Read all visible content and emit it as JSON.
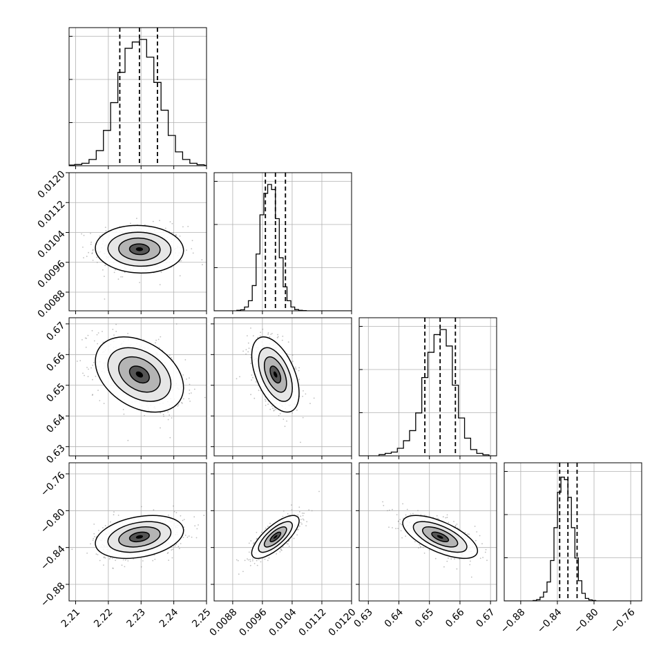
{
  "chart_data": {
    "type": "corner",
    "params": [
      {
        "range": [
          2.208,
          2.25
        ],
        "mean": 2.2295,
        "sd": 0.0055,
        "q": [
          2.2235,
          2.2295,
          2.235
        ],
        "ticks": [
          "2.21",
          "2.22",
          "2.23",
          "2.24",
          "2.25"
        ],
        "tick_values": [
          2.21,
          2.22,
          2.23,
          2.24,
          2.25
        ]
      },
      {
        "range": [
          0.0083,
          0.012
        ],
        "mean": 0.00995,
        "sd": 0.00026,
        "q": [
          0.00968,
          0.00995,
          0.01022
        ],
        "ticks": [
          "0.0088",
          "0.0096",
          "0.0104",
          "0.0112",
          "0.0120"
        ],
        "tick_values": [
          0.0088,
          0.0096,
          0.0104,
          0.0112,
          0.012
        ]
      },
      {
        "range": [
          0.627,
          0.672
        ],
        "mean": 0.6535,
        "sd": 0.005,
        "q": [
          0.6485,
          0.6535,
          0.6585
        ],
        "ticks": [
          "0.63",
          "0.64",
          "0.65",
          "0.66",
          "0.67"
        ],
        "tick_values": [
          0.63,
          0.64,
          0.65,
          0.66,
          0.67
        ]
      },
      {
        "range": [
          -0.898,
          -0.748
        ],
        "mean": -0.8285,
        "sd": 0.0095,
        "q": [
          -0.8375,
          -0.8285,
          -0.8185
        ],
        "ticks": [
          "−0.88",
          "−0.84",
          "−0.80",
          "−0.76"
        ],
        "tick_values": [
          -0.88,
          -0.84,
          -0.8,
          -0.76
        ]
      }
    ],
    "correlations": {
      "1-0": -0.05,
      "2-0": -0.35,
      "2-1": -0.5,
      "3-0": 0.3,
      "3-1": 0.75,
      "3-2": -0.65
    },
    "histograms": [
      [
        0.005,
        0.01,
        0.02,
        0.05,
        0.12,
        0.28,
        0.5,
        0.74,
        0.93,
        0.98,
        1.0,
        0.86,
        0.66,
        0.44,
        0.24,
        0.11,
        0.05,
        0.02,
        0.008,
        0.003
      ],
      [
        0.004,
        0.008,
        0.03,
        0.08,
        0.2,
        0.45,
        0.76,
        0.93,
        1.0,
        0.96,
        0.73,
        0.42,
        0.19,
        0.08,
        0.03,
        0.01,
        0.004,
        0.002,
        0.0,
        0.0
      ],
      [
        0.01,
        0.02,
        0.03,
        0.06,
        0.12,
        0.2,
        0.34,
        0.62,
        0.82,
        0.96,
        1.0,
        0.87,
        0.56,
        0.3,
        0.14,
        0.05,
        0.02,
        0.008,
        0.0,
        0.0
      ],
      [
        0.003,
        0.01,
        0.03,
        0.07,
        0.15,
        0.32,
        0.58,
        0.86,
        0.98,
        0.96,
        0.82,
        0.58,
        0.34,
        0.16,
        0.06,
        0.02,
        0.008,
        0.003,
        0.0,
        0.0
      ]
    ],
    "grid": true
  }
}
